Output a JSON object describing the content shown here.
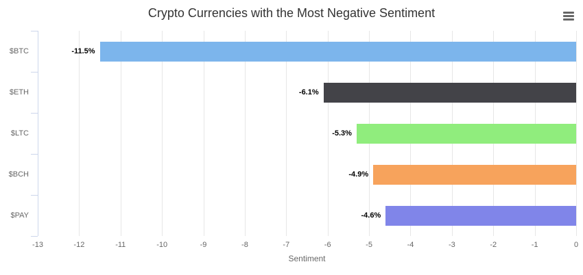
{
  "title": "Crypto Currencies with the Most Negative Sentiment",
  "icons": {
    "menu": "hamburger-menu-icon"
  },
  "chart_data": {
    "type": "bar",
    "orientation": "horizontal",
    "title": "Crypto Currencies with the Most Negative Sentiment",
    "categories": [
      "$BTC",
      "$ETH",
      "$LTC",
      "$BCH",
      "$PAY"
    ],
    "values": [
      -11.5,
      -6.1,
      -5.3,
      -4.9,
      -4.6
    ],
    "data_labels": [
      "-11.5%",
      "-6.1%",
      "-5.3%",
      "-4.9%",
      "-4.6%"
    ],
    "bar_colors": [
      "#7cb5ec",
      "#434348",
      "#90ed7d",
      "#f7a35c",
      "#8085e9"
    ],
    "xlabel": "Sentiment",
    "ylabel": "",
    "xlim": [
      -13,
      0
    ],
    "xticks": [
      -13,
      -12,
      -11,
      -10,
      -9,
      -8,
      -7,
      -6,
      -5,
      -4,
      -3,
      -2,
      -1,
      0
    ],
    "grid": true,
    "legend": false
  },
  "colors": {
    "background": "#ffffff",
    "title_text": "#333333",
    "axis_label_text": "#666666",
    "data_label_text": "#000000",
    "gridline": "#e6e6e6",
    "axis_line": "#ccd6eb",
    "menu_icon": "#666666"
  }
}
